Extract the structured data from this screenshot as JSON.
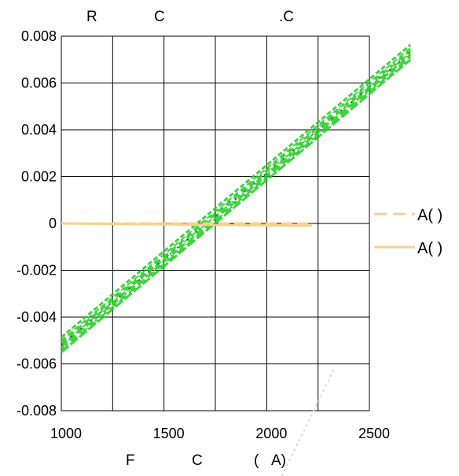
{
  "title": {
    "fragments": [
      "R",
      "C",
      ".C"
    ]
  },
  "xlabel": {
    "fragments": [
      "F",
      "C",
      "(",
      "A)"
    ]
  },
  "legend": {
    "items": [
      {
        "label": "A(  )",
        "style": "dashed",
        "color": "#f6d28a"
      },
      {
        "label": "A(  )",
        "style": "solid",
        "color": "#f6d28a"
      }
    ]
  },
  "chart_data": {
    "type": "line",
    "x_ticks": [
      "1000",
      "1500",
      "2000",
      "2500"
    ],
    "y_ticks": [
      "0.008",
      "0.006",
      "0.004",
      "0.002",
      "0",
      "-0.002",
      "-0.004",
      "-0.006",
      "-0.008"
    ],
    "xlim": [
      1000,
      2500
    ],
    "ylim": [
      -0.008,
      0.008
    ],
    "grid": true,
    "legend_position": "right",
    "colors": {
      "horizontal_lines": "#f6d28a",
      "diagonal_band": "#22cc22",
      "grid": "#000000"
    },
    "series": [
      {
        "name": "A(  )",
        "style": "dashed",
        "color": "#f6d28a",
        "x": [
          1000,
          2220
        ],
        "y": [
          0,
          0
        ]
      },
      {
        "name": "A(  )",
        "style": "solid",
        "color": "#f6d28a",
        "x": [
          1000,
          2220
        ],
        "y": [
          0,
          -0.0001
        ]
      },
      {
        "style": "scribble",
        "color": "#22cc22",
        "x": [
          1000,
          2700
        ],
        "y": [
          -0.0052,
          0.0073
        ]
      }
    ]
  }
}
